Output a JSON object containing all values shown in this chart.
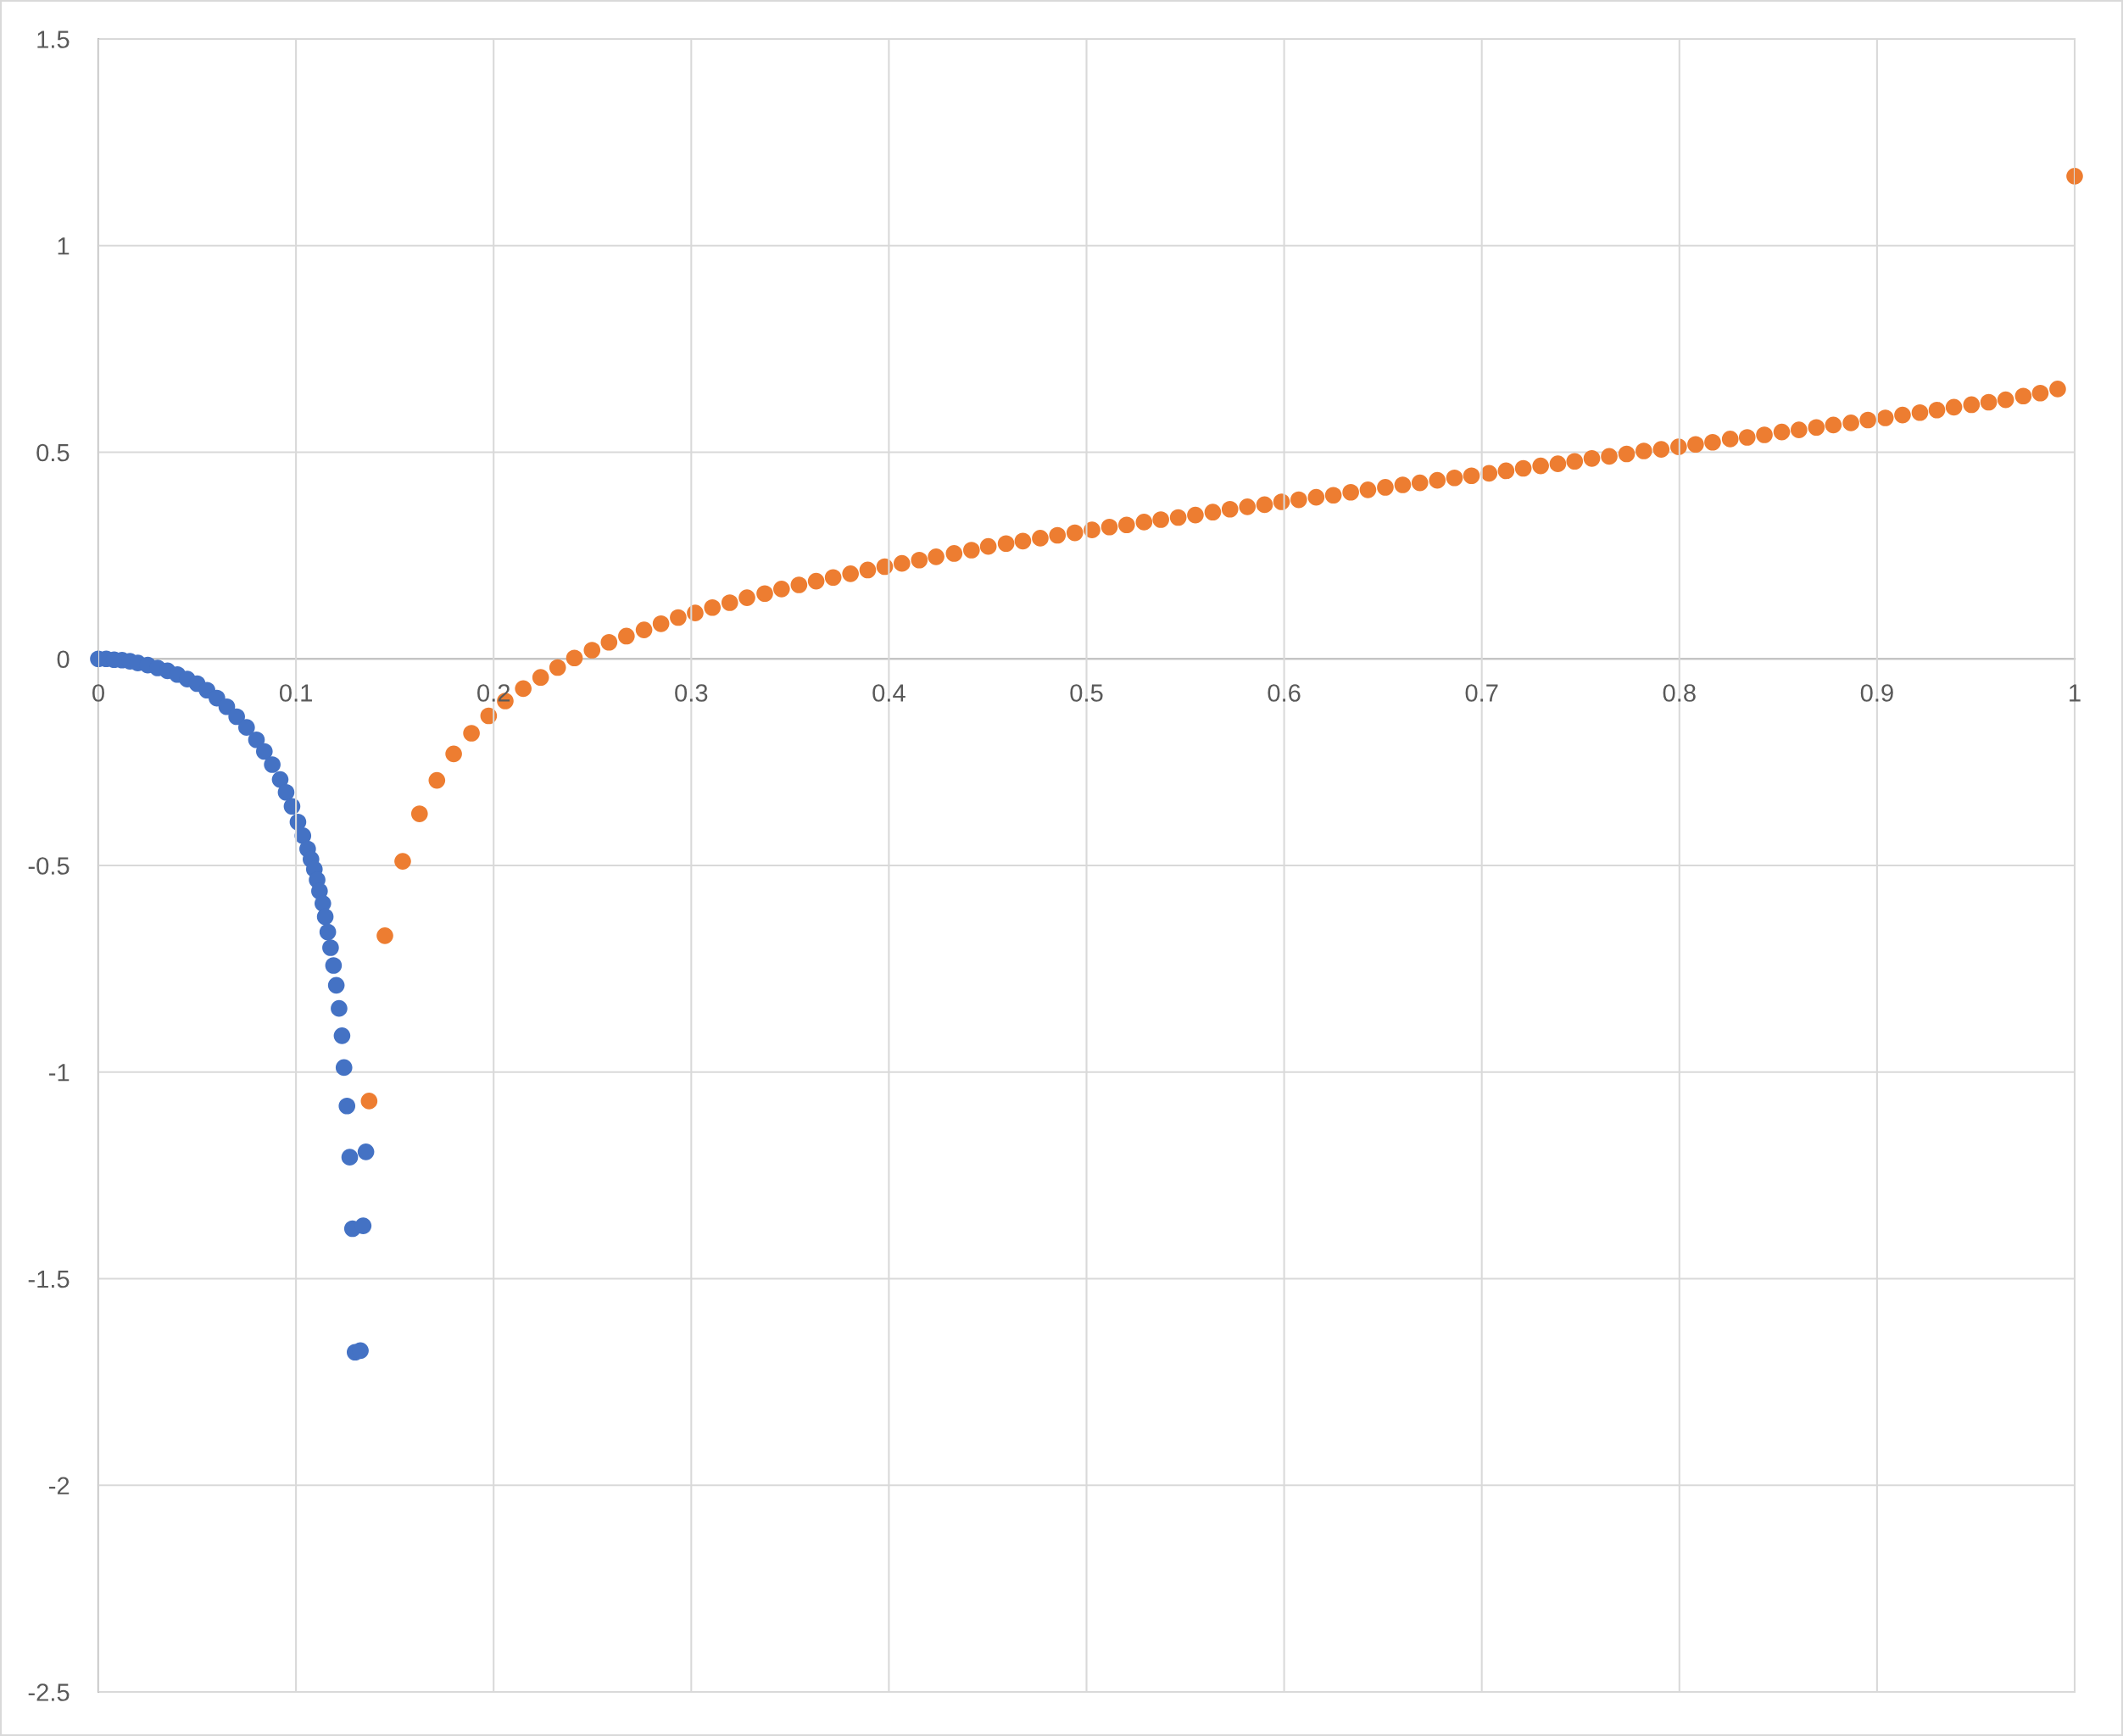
{
  "chart_data": {
    "type": "scatter",
    "marker": "circle",
    "grid": true,
    "xlim": [
      0,
      1
    ],
    "xticks": [
      0,
      0.1,
      0.2,
      0.3,
      0.4,
      0.5,
      0.6,
      0.7,
      0.8,
      0.9,
      1
    ],
    "ylim": [
      -2.5,
      1.5
    ],
    "yticks": [
      -2.5,
      -2,
      -1.5,
      -1,
      -0.5,
      0,
      0.5,
      1,
      1.5
    ],
    "series": [
      {
        "color": "#4472c4",
        "x": [
          0,
          0.004,
          0.008,
          0.012,
          0.016,
          0.02,
          0.025,
          0.03,
          0.035,
          0.04,
          0.045,
          0.05,
          0.055,
          0.06,
          0.065,
          0.07,
          0.075,
          0.08,
          0.084,
          0.088,
          0.092,
          0.095,
          0.098,
          0.101,
          0.1035,
          0.1059,
          0.1076,
          0.1093,
          0.1107,
          0.1119,
          0.1136,
          0.1148,
          0.1161,
          0.1175,
          0.119,
          0.1204,
          0.1218,
          0.1233,
          0.1243,
          0.1258,
          0.1272,
          0.1286,
          0.1299,
          0.1326,
          0.134,
          0.1354
        ],
        "values": [
          0,
          0,
          -0.002,
          -0.003,
          -0.006,
          -0.01,
          -0.015,
          -0.022,
          -0.029,
          -0.038,
          -0.049,
          -0.06,
          -0.076,
          -0.095,
          -0.116,
          -0.14,
          -0.166,
          -0.196,
          -0.224,
          -0.256,
          -0.292,
          -0.323,
          -0.357,
          -0.395,
          -0.428,
          -0.46,
          -0.485,
          -0.509,
          -0.535,
          -0.562,
          -0.592,
          -0.624,
          -0.661,
          -0.699,
          -0.742,
          -0.79,
          -0.846,
          -0.912,
          -0.989,
          -1.082,
          -1.206,
          -1.379,
          -1.678,
          -1.674,
          -1.372,
          -1.193
        ]
      },
      {
        "color": "#ed7d31",
        "x": [
          0.137,
          0.145,
          0.154,
          0.1625,
          0.1713,
          0.1798,
          0.1888,
          0.1975,
          0.2059,
          0.215,
          0.2238,
          0.2324,
          0.2409,
          0.2498,
          0.2584,
          0.2672,
          0.2761,
          0.2847,
          0.2934,
          0.302,
          0.3107,
          0.3195,
          0.3282,
          0.3372,
          0.3457,
          0.3545,
          0.3632,
          0.3718,
          0.3806,
          0.3893,
          0.3979,
          0.4066,
          0.4154,
          0.4239,
          0.433,
          0.4418,
          0.4503,
          0.4593,
          0.4678,
          0.4766,
          0.4853,
          0.4941,
          0.5028,
          0.5116,
          0.5203,
          0.5291,
          0.5376,
          0.5464,
          0.5551,
          0.5639,
          0.5726,
          0.5814,
          0.5901,
          0.5987,
          0.6074,
          0.6162,
          0.6249,
          0.6337,
          0.6424,
          0.6512,
          0.66,
          0.6687,
          0.6775,
          0.6862,
          0.6948,
          0.7037,
          0.7123,
          0.721,
          0.7298,
          0.7385,
          0.747,
          0.7557,
          0.7645,
          0.7733,
          0.782,
          0.7908,
          0.7996,
          0.8082,
          0.8168,
          0.8257,
          0.8343,
          0.843,
          0.8518,
          0.8605,
          0.8693,
          0.8779,
          0.8868,
          0.8954,
          0.9042,
          0.9129,
          0.9217,
          0.9303,
          0.9389,
          0.9478,
          0.9565,
          0.9651,
          0.974,
          0.9826,
          0.9914,
          1.0
        ],
        "values": [
          -1.07,
          -0.67,
          -0.49,
          -0.375,
          -0.294,
          -0.23,
          -0.18,
          -0.138,
          -0.102,
          -0.072,
          -0.045,
          -0.021,
          0.002,
          0.021,
          0.04,
          0.055,
          0.07,
          0.085,
          0.1,
          0.111,
          0.124,
          0.136,
          0.148,
          0.158,
          0.169,
          0.179,
          0.188,
          0.197,
          0.206,
          0.215,
          0.223,
          0.231,
          0.239,
          0.247,
          0.255,
          0.263,
          0.272,
          0.279,
          0.285,
          0.292,
          0.299,
          0.305,
          0.312,
          0.319,
          0.324,
          0.331,
          0.337,
          0.342,
          0.348,
          0.355,
          0.362,
          0.368,
          0.373,
          0.38,
          0.385,
          0.391,
          0.396,
          0.403,
          0.409,
          0.415,
          0.421,
          0.426,
          0.432,
          0.438,
          0.443,
          0.449,
          0.455,
          0.461,
          0.467,
          0.472,
          0.478,
          0.485,
          0.49,
          0.496,
          0.503,
          0.507,
          0.513,
          0.519,
          0.524,
          0.532,
          0.536,
          0.542,
          0.549,
          0.554,
          0.56,
          0.566,
          0.571,
          0.578,
          0.583,
          0.59,
          0.596,
          0.602,
          0.609,
          0.615,
          0.621,
          0.627,
          0.636,
          0.643,
          0.653,
          1.168
        ]
      }
    ]
  }
}
